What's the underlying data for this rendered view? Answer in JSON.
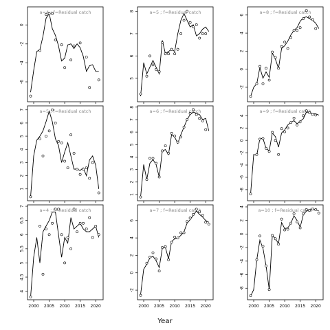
{
  "figure": {
    "xlabel": "Year"
  },
  "chart_data": [
    {
      "type": "line",
      "title": "a=4 ; f=Residual catch",
      "x_fit": [
        1999,
        2000,
        2001,
        2002,
        2003,
        2004,
        2005,
        2006,
        2007,
        2008,
        2009,
        2010,
        2011,
        2012,
        2013,
        2014,
        2015,
        2016,
        2017,
        2018,
        2019,
        2020,
        2021
      ],
      "y_fit": [
        -7.1,
        -4.8,
        -2.8,
        -2.6,
        -1.2,
        0.7,
        1.2,
        -0.4,
        -1.1,
        -2.2,
        -3.8,
        -3.5,
        -2.1,
        -2.0,
        -2.5,
        -2.0,
        -2.4,
        -3.3,
        -4.9,
        -4.3,
        -4.2,
        -4.9,
        -4.9
      ],
      "x_obs": [
        1999,
        2002,
        2004,
        2005,
        2006,
        2007,
        2009,
        2010,
        2012,
        2013,
        2015,
        2017,
        2018,
        2021
      ],
      "y_obs": [
        -7.5,
        -2.7,
        1.1,
        1.2,
        1.2,
        -1.6,
        -2.1,
        -4.5,
        -3.7,
        -2.2,
        -1.9,
        -3.4,
        -6.6,
        -5.8
      ],
      "ylim": [
        -8.1,
        1.9
      ],
      "yticks": [
        0,
        -2,
        -4,
        -6
      ]
    },
    {
      "type": "line",
      "title": "a=5 ; f=Residual catch",
      "x_fit": [
        1999,
        2000,
        2001,
        2002,
        2003,
        2004,
        2005,
        2006,
        2007,
        2008,
        2009,
        2010,
        2011,
        2012,
        2013,
        2014,
        2015,
        2016,
        2017,
        2018,
        2019,
        2020,
        2021
      ],
      "y_fit": [
        4.2,
        5.7,
        5.2,
        5.5,
        5.8,
        5.5,
        5.2,
        6.7,
        6.1,
        6.2,
        6.3,
        6.2,
        7.0,
        7.6,
        7.9,
        7.6,
        7.3,
        7.4,
        6.9,
        7.0,
        7.2,
        7.3,
        7.1
      ],
      "x_obs": [
        1999,
        2001,
        2002,
        2003,
        2004,
        2005,
        2006,
        2007,
        2008,
        2009,
        2010,
        2011,
        2012,
        2013,
        2014,
        2015,
        2016,
        2017,
        2018,
        2019,
        2020
      ],
      "y_obs": [
        4.3,
        5.1,
        6.0,
        5.6,
        5.4,
        5.3,
        6.6,
        6.1,
        6.1,
        6.3,
        6.1,
        6.3,
        7.0,
        7.6,
        8.0,
        7.5,
        7.3,
        7.4,
        6.8,
        7.0,
        7.0
      ],
      "ylim": [
        3.95,
        8.2
      ],
      "yticks": [
        5,
        6,
        7,
        8
      ]
    },
    {
      "type": "line",
      "title": "a=8 ; f=Residual catch",
      "x_fit": [
        1999,
        2000,
        2001,
        2002,
        2003,
        2004,
        2005,
        2006,
        2007,
        2008,
        2009,
        2010,
        2011,
        2012,
        2013,
        2014,
        2015,
        2016,
        2017,
        2018,
        2019,
        2020,
        2021
      ],
      "y_fit": [
        -3.0,
        -2.0,
        -1.6,
        0.2,
        -1.0,
        -0.3,
        -0.9,
        1.8,
        1.1,
        0.1,
        2.3,
        2.6,
        3.1,
        3.8,
        4.3,
        4.6,
        5.3,
        5.7,
        5.8,
        5.6,
        5.4,
        5.1,
        4.5
      ],
      "x_obs": [
        1999,
        2001,
        2002,
        2003,
        2004,
        2005,
        2006,
        2007,
        2008,
        2009,
        2010,
        2011,
        2012,
        2013,
        2014,
        2015,
        2016,
        2017,
        2018,
        2019,
        2020
      ],
      "y_obs": [
        -3.0,
        -1.6,
        0.3,
        -1.6,
        0.1,
        -1.2,
        1.9,
        1.3,
        0.1,
        2.5,
        3.0,
        2.3,
        3.5,
        4.3,
        4.3,
        4.6,
        5.6,
        6.5,
        5.8,
        5.5,
        4.5
      ],
      "ylim": [
        -3.6,
        6.9
      ],
      "yticks": [
        -2,
        0,
        2,
        4,
        6
      ]
    },
    {
      "type": "line",
      "title": "a=5 ; f=Residual catch",
      "x_fit": [
        1999,
        2000,
        2001,
        2002,
        2003,
        2004,
        2005,
        2006,
        2007,
        2008,
        2009,
        2010,
        2011,
        2012,
        2013,
        2014,
        2015,
        2016,
        2017,
        2018,
        2019,
        2020,
        2021
      ],
      "y_fit": [
        0.4,
        3.5,
        4.7,
        5.0,
        5.4,
        6.1,
        6.9,
        6.1,
        4.8,
        4.3,
        3.0,
        3.8,
        4.5,
        3.5,
        2.5,
        2.5,
        2.4,
        2.6,
        2.0,
        3.2,
        3.5,
        2.8,
        1.0
      ],
      "x_obs": [
        1999,
        2002,
        2003,
        2004,
        2005,
        2006,
        2007,
        2008,
        2009,
        2010,
        2011,
        2012,
        2013,
        2014,
        2015,
        2016,
        2017,
        2018,
        2019,
        2021
      ],
      "y_obs": [
        0.4,
        4.8,
        3.5,
        5.0,
        5.4,
        7.0,
        6.0,
        4.6,
        4.5,
        3.1,
        2.6,
        5.1,
        3.7,
        2.5,
        2.1,
        2.5,
        2.6,
        1.8,
        3.0,
        0.7
      ],
      "ylim": [
        0.1,
        7.3
      ],
      "yticks": [
        1,
        2,
        3,
        4,
        5,
        6,
        7
      ]
    },
    {
      "type": "line",
      "title": "a=6 ; f=Residual catch",
      "x_fit": [
        1999,
        2000,
        2001,
        2002,
        2003,
        2004,
        2005,
        2006,
        2007,
        2008,
        2009,
        2010,
        2011,
        2012,
        2013,
        2014,
        2015,
        2016,
        2017,
        2018,
        2019,
        2020,
        2021
      ],
      "y_fit": [
        0.8,
        3.4,
        2.2,
        3.5,
        3.8,
        3.4,
        2.4,
        4.5,
        4.6,
        4.2,
        5.8,
        5.6,
        5.1,
        5.8,
        6.4,
        7.0,
        7.4,
        7.6,
        7.5,
        7.4,
        7.0,
        7.1,
        6.1
      ],
      "x_obs": [
        1999,
        2001,
        2002,
        2003,
        2004,
        2005,
        2006,
        2007,
        2008,
        2009,
        2010,
        2011,
        2012,
        2013,
        2014,
        2015,
        2016,
        2017,
        2018,
        2019,
        2020
      ],
      "y_obs": [
        0.8,
        2.2,
        3.9,
        3.9,
        3.5,
        2.4,
        4.5,
        4.9,
        4.3,
        5.9,
        5.7,
        5.2,
        5.6,
        6.4,
        7.0,
        7.5,
        7.8,
        7.4,
        7.1,
        6.9,
        6.2
      ],
      "ylim": [
        0.5,
        8.1
      ],
      "yticks": [
        1,
        2,
        3,
        4,
        5,
        6,
        7,
        8
      ]
    },
    {
      "type": "line",
      "title": "a=9 ; f=Residual catch",
      "x_fit": [
        1999,
        2000,
        2001,
        2002,
        2003,
        2004,
        2005,
        2006,
        2007,
        2008,
        2009,
        2010,
        2011,
        2012,
        2013,
        2014,
        2015,
        2016,
        2017,
        2018,
        2019,
        2020,
        2021
      ],
      "y_fit": [
        -8.7,
        -2.3,
        -2.4,
        0.3,
        0.3,
        -1.3,
        -1.7,
        1.2,
        0.6,
        -1.1,
        1.2,
        1.7,
        2.5,
        2.9,
        3.2,
        2.7,
        3.1,
        3.5,
        4.6,
        4.6,
        4.3,
        4.3,
        4.1
      ],
      "x_obs": [
        1999,
        2001,
        2002,
        2003,
        2004,
        2005,
        2006,
        2007,
        2008,
        2009,
        2010,
        2011,
        2012,
        2013,
        2014,
        2015,
        2016,
        2017,
        2018,
        2019,
        2020
      ],
      "y_obs": [
        -8.7,
        -2.3,
        0.2,
        0.3,
        -1.3,
        -1.8,
        1.3,
        0.0,
        -2.3,
        1.9,
        1.4,
        2.0,
        2.9,
        3.6,
        2.5,
        3.0,
        4.0,
        4.8,
        4.5,
        4.2,
        4.1
      ],
      "ylim": [
        -9.8,
        5.6
      ],
      "yticks": [
        -8,
        -6,
        -4,
        -2,
        0,
        2,
        4
      ]
    },
    {
      "type": "line",
      "title": "a=4 ; f=Residual catch",
      "x_fit": [
        1999,
        2000,
        2001,
        2002,
        2003,
        2004,
        2005,
        2006,
        2007,
        2008,
        2009,
        2010,
        2011,
        2012,
        2013,
        2014,
        2015,
        2016,
        2017,
        2018,
        2019,
        2020,
        2021
      ],
      "y_fit": [
        3.8,
        5.2,
        5.9,
        5.0,
        6.1,
        6.3,
        6.5,
        6.8,
        6.8,
        6.0,
        5.2,
        5.9,
        5.7,
        6.6,
        6.2,
        6.3,
        6.4,
        6.2,
        6.1,
        6.1,
        6.2,
        6.3,
        5.9
      ],
      "x_obs": [
        1999,
        2002,
        2003,
        2004,
        2005,
        2006,
        2007,
        2008,
        2009,
        2010,
        2011,
        2012,
        2013,
        2014,
        2015,
        2016,
        2017,
        2018,
        2019,
        2020,
        2021
      ],
      "y_obs": [
        3.8,
        6.3,
        4.6,
        6.2,
        6.0,
        6.4,
        6.9,
        6.9,
        6.0,
        5.0,
        5.9,
        5.5,
        6.9,
        6.1,
        6.4,
        6.4,
        6.2,
        6.6,
        5.9,
        6.3,
        6.0
      ],
      "ylim": [
        3.7,
        7.05
      ],
      "yticks": [
        4.0,
        4.5,
        5.0,
        5.5,
        6.0,
        6.5,
        7.0
      ]
    },
    {
      "type": "line",
      "title": "a=7 ; f=Residual catch",
      "x_fit": [
        1999,
        2000,
        2001,
        2002,
        2003,
        2004,
        2005,
        2006,
        2007,
        2008,
        2009,
        2010,
        2011,
        2012,
        2013,
        2014,
        2015,
        2016,
        2017,
        2018,
        2019,
        2020,
        2021
      ],
      "y_fit": [
        -2.5,
        0.4,
        1.0,
        1.7,
        1.9,
        1.4,
        0.6,
        2.8,
        2.9,
        1.6,
        3.6,
        3.9,
        4.0,
        4.3,
        4.7,
        5.7,
        6.1,
        6.6,
        7.1,
        6.7,
        6.4,
        6.0,
        5.8
      ],
      "x_obs": [
        1999,
        2001,
        2002,
        2003,
        2004,
        2005,
        2006,
        2007,
        2008,
        2009,
        2010,
        2011,
        2012,
        2013,
        2014,
        2015,
        2016,
        2017,
        2018,
        2019,
        2020,
        2021
      ],
      "y_obs": [
        -2.6,
        1.1,
        1.8,
        2.3,
        1.6,
        0.2,
        2.9,
        3.0,
        1.5,
        3.5,
        4.1,
        4.0,
        4.6,
        4.6,
        5.9,
        6.3,
        6.7,
        7.3,
        7.0,
        6.6,
        5.8,
        5.6
      ],
      "ylim": [
        -3.1,
        7.8
      ],
      "yticks": [
        -2,
        0,
        2,
        4,
        6
      ]
    },
    {
      "type": "line",
      "title": "a=10 ; f=Residual catch",
      "x_fit": [
        1999,
        2000,
        2001,
        2002,
        2003,
        2004,
        2005,
        2006,
        2007,
        2008,
        2009,
        2010,
        2011,
        2012,
        2013,
        2014,
        2015,
        2016,
        2017,
        2018,
        2019,
        2020,
        2021
      ],
      "y_fit": [
        -9.2,
        -8.2,
        -3.8,
        -0.9,
        -2.1,
        -4.7,
        -8.2,
        -0.2,
        -0.7,
        -1.4,
        1.7,
        0.8,
        0.9,
        1.6,
        2.7,
        2.0,
        1.0,
        2.8,
        3.4,
        3.6,
        3.6,
        3.6,
        3.4
      ],
      "x_obs": [
        1999,
        2001,
        2002,
        2003,
        2004,
        2005,
        2006,
        2007,
        2008,
        2009,
        2010,
        2011,
        2012,
        2013,
        2014,
        2015,
        2016,
        2017,
        2018,
        2019,
        2020,
        2021
      ],
      "y_obs": [
        -9.1,
        -3.8,
        -0.3,
        -1.8,
        -4.7,
        -8.2,
        -0.2,
        -0.7,
        -1.5,
        2.2,
        0.6,
        0.7,
        1.6,
        3.0,
        1.8,
        0.9,
        3.0,
        3.6,
        3.5,
        3.7,
        3.6,
        3.1
      ],
      "ylim": [
        -9.7,
        4.3
      ],
      "yticks": [
        -8,
        -6,
        -4,
        -2,
        0,
        2,
        4
      ]
    }
  ],
  "x_axis": {
    "xlim": [
      1998.0,
      2022.4
    ],
    "xticks": [
      2000,
      2005,
      2010,
      2015,
      2020
    ],
    "tick_rows": [
      2
    ]
  },
  "styles": {
    "line_color": "#000000",
    "marker_face": "#ffffff",
    "title_color": "#8c8c8c"
  }
}
